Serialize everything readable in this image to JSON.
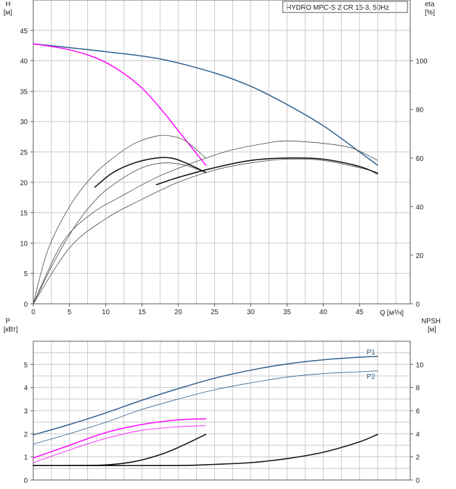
{
  "chart_data": [
    {
      "type": "line",
      "panel": "head-efficiency",
      "title": "HYDRO MPC-S 2 CR 15-3, 50Hz",
      "left_axis": {
        "label_top": "H",
        "label_unit": "[м]",
        "ticks": [
          0,
          5,
          10,
          15,
          20,
          25,
          30,
          35,
          40,
          45
        ],
        "range": [
          0,
          50
        ]
      },
      "right_axis": {
        "label_top": "eta",
        "label_unit": "[%]",
        "ticks": [
          0,
          20,
          40,
          60,
          80,
          100
        ],
        "range": [
          0,
          125
        ]
      },
      "x_axis": {
        "label": "Q [м³/ч]",
        "ticks": [
          0,
          5,
          10,
          15,
          20,
          25,
          30,
          35,
          40,
          45
        ],
        "range": [
          0,
          52
        ]
      },
      "grid": true,
      "series": [
        {
          "axis": "left",
          "color": "#2b5d8c",
          "width": 1.5,
          "x": [
            0,
            10,
            17.5,
            25,
            30,
            35,
            40,
            45,
            47.5
          ],
          "y": [
            42.8,
            41.5,
            40.3,
            38.0,
            35.8,
            32.8,
            29.3,
            25.0,
            22.8
          ]
        },
        {
          "axis": "left",
          "color": "#ff00ff",
          "width": 1.5,
          "x": [
            0,
            5,
            9,
            12,
            15,
            18,
            20,
            22,
            23.8
          ],
          "y": [
            42.8,
            41.8,
            40.3,
            38.3,
            35.5,
            31.5,
            28.5,
            25.5,
            22.8
          ]
        },
        {
          "axis": "right",
          "color": "#444444",
          "width": 0.8,
          "x": [
            0,
            2,
            5,
            8,
            11,
            14,
            17,
            19,
            21,
            23.8
          ],
          "y": [
            0,
            22,
            40,
            52,
            60,
            66,
            69,
            69,
            67,
            60
          ]
        },
        {
          "axis": "right",
          "color": "#444444",
          "width": 0.8,
          "x": [
            0,
            4,
            8,
            12,
            17,
            22,
            27,
            32,
            35,
            40,
            44,
            47.5
          ],
          "y": [
            0,
            25,
            37,
            44,
            52,
            58,
            63,
            66,
            67,
            66,
            64,
            59
          ]
        },
        {
          "axis": "right",
          "color": "#444444",
          "width": 0.8,
          "x": [
            0,
            3,
            6,
            9,
            12,
            15,
            18,
            21,
            23.8
          ],
          "y": [
            0,
            18,
            33,
            44,
            51,
            56,
            58,
            57,
            54
          ]
        },
        {
          "axis": "right",
          "color": "#444444",
          "width": 0.8,
          "x": [
            0,
            5,
            10,
            15,
            20,
            25,
            30,
            35,
            40,
            45,
            47.5
          ],
          "y": [
            0,
            23,
            35,
            43,
            50,
            55,
            58,
            59.5,
            59,
            56,
            54
          ]
        },
        {
          "axis": "right",
          "color": "#111111",
          "width": 1.6,
          "x": [
            8.5,
            11,
            14,
            17,
            19,
            21,
            23.8
          ],
          "y": [
            48,
            54,
            58,
            60,
            60,
            58,
            54
          ]
        },
        {
          "axis": "right",
          "color": "#111111",
          "width": 1.6,
          "x": [
            17,
            20,
            25,
            30,
            35,
            40,
            45,
            47.5
          ],
          "y": [
            49,
            52,
            56,
            59,
            60,
            59.5,
            56.5,
            53.5
          ]
        }
      ]
    },
    {
      "type": "line",
      "panel": "power-npsh",
      "left_axis": {
        "label_top": "P",
        "label_unit": "[кВт]",
        "ticks": [
          0,
          1,
          2,
          3,
          4,
          5
        ],
        "range": [
          0,
          6
        ]
      },
      "right_axis": {
        "label_top": "NPSH",
        "label_unit": "[м]",
        "ticks": [
          0,
          2,
          4,
          6,
          8,
          10
        ],
        "range": [
          0,
          12
        ]
      },
      "x_range": [
        0,
        52
      ],
      "grid": true,
      "series": [
        {
          "name": "P1",
          "axis": "left",
          "color": "#2b5d8c",
          "width": 1.5,
          "x": [
            0,
            5,
            10,
            15,
            20,
            25,
            30,
            35,
            40,
            45,
            47.5
          ],
          "y": [
            1.95,
            2.4,
            2.9,
            3.45,
            3.95,
            4.4,
            4.75,
            5.02,
            5.2,
            5.31,
            5.35
          ]
        },
        {
          "name": "P2",
          "axis": "left",
          "color": "#2b5d8c",
          "width": 0.8,
          "x": [
            0,
            5,
            10,
            15,
            20,
            25,
            30,
            35,
            40,
            45,
            47.5
          ],
          "y": [
            1.55,
            2.0,
            2.5,
            3.05,
            3.5,
            3.9,
            4.2,
            4.45,
            4.6,
            4.68,
            4.72
          ]
        },
        {
          "axis": "left",
          "color": "#ff00ff",
          "width": 1.5,
          "x": [
            0,
            5,
            10,
            15,
            20,
            23.8
          ],
          "y": [
            0.95,
            1.5,
            2.05,
            2.4,
            2.6,
            2.65
          ]
        },
        {
          "axis": "left",
          "color": "#ff00ff",
          "width": 0.8,
          "x": [
            0,
            5,
            10,
            15,
            20,
            23.8
          ],
          "y": [
            0.75,
            1.3,
            1.8,
            2.15,
            2.3,
            2.35
          ]
        },
        {
          "axis": "right",
          "color": "#111111",
          "width": 1.6,
          "x": [
            0,
            5,
            10,
            14,
            18,
            21,
            23.8
          ],
          "y": [
            1.25,
            1.25,
            1.3,
            1.6,
            2.3,
            3.1,
            3.95
          ]
        },
        {
          "axis": "right",
          "color": "#111111",
          "width": 1.6,
          "x": [
            0,
            10,
            20,
            25,
            30,
            35,
            40,
            45,
            47.5
          ],
          "y": [
            1.25,
            1.25,
            1.25,
            1.35,
            1.5,
            1.85,
            2.4,
            3.3,
            3.95
          ]
        }
      ],
      "labels": [
        {
          "text": "P1",
          "x": 46,
          "y": 5.55,
          "color": "#2b5d8c"
        },
        {
          "text": "P2",
          "x": 46,
          "y": 4.5,
          "color": "#2b5d8c"
        }
      ]
    }
  ]
}
